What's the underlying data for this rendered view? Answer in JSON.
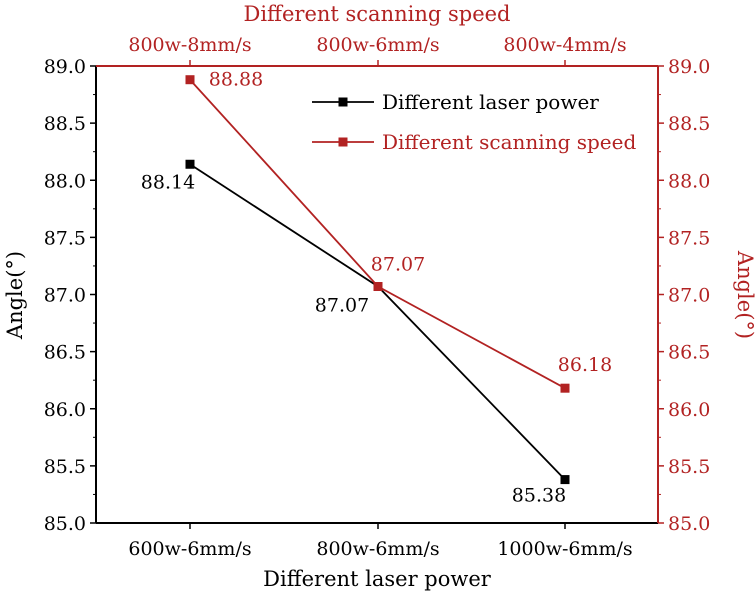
{
  "chart_data": {
    "type": "line",
    "title": "",
    "xlabel": "Different laser power",
    "x2label": "Different scanning speed",
    "ylabel": "Angle(°)",
    "y2label": "Angle(°)",
    "ylim": [
      85.0,
      89.0
    ],
    "y2lim": [
      85.0,
      89.0
    ],
    "yticks": [
      "85.0",
      "85.5",
      "86.0",
      "86.5",
      "87.0",
      "87.5",
      "88.0",
      "88.5",
      "89.0"
    ],
    "categories": [
      "600w-6mm/s",
      "800w-6mm/s",
      "1000w-6mm/s"
    ],
    "categories_top": [
      "800w-8mm/s",
      "800w-6mm/s",
      "800w-4mm/s"
    ],
    "grid": false,
    "legend_position": "top-right",
    "series": [
      {
        "name": "Different laser power",
        "color": "#000000",
        "values": [
          88.14,
          87.07,
          85.38
        ],
        "labels": [
          "88.14",
          "87.07",
          "85.38"
        ]
      },
      {
        "name": "Different scanning speed",
        "color": "#b22222",
        "values": [
          88.88,
          87.07,
          86.18
        ],
        "labels": [
          "88.88",
          "87.07",
          "86.18"
        ]
      }
    ]
  }
}
